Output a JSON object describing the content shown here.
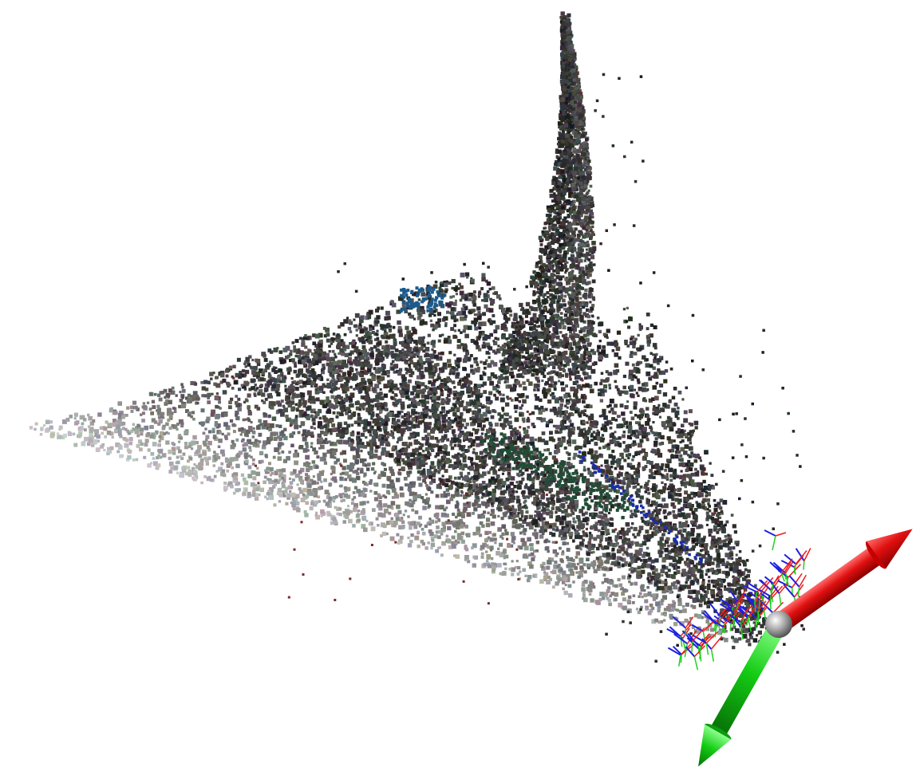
{
  "viewer": {
    "background_color": "#ffffff"
  },
  "point_cloud": {
    "object": "point-cloud",
    "surface_colors": [
      "#1a1a1a",
      "#2f2f2f",
      "#454545",
      "#5e5e5e",
      "#7a7a7a",
      "#9a9a9a",
      "#b8b8b8",
      "#d0d0d0"
    ],
    "accent_colors": [
      "#1c5a8a",
      "#1f4d35",
      "#1a2ea8",
      "#7a2a2a"
    ]
  },
  "camera_poses": {
    "object": "camera-pose-frames",
    "x_axis_color": "#ee1c1c",
    "y_axis_color": "#1fd11f",
    "z_axis_color": "#1f1fe0"
  },
  "world_axes": {
    "x_axis": {
      "icon": "red-arrow-icon",
      "color": "#e01010"
    },
    "y_axis": {
      "icon": "green-arrow-icon",
      "color": "#14cc14"
    },
    "origin": {
      "icon": "origin-sphere-icon",
      "color": "#9a9a9a"
    }
  }
}
